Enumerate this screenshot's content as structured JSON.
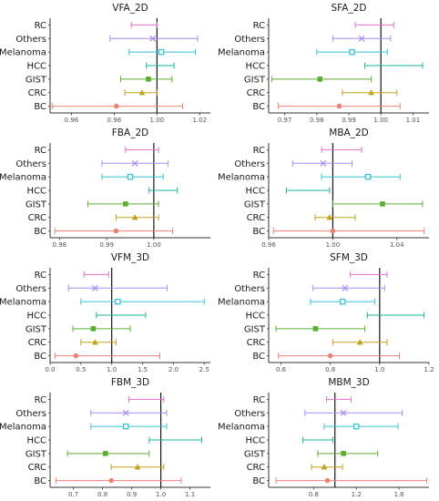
{
  "figure": {
    "categories": [
      "RC",
      "Others",
      "Melanoma",
      "HCC",
      "GIST",
      "CRC",
      "BC"
    ],
    "series_colors": {
      "RC": "#e46fd6",
      "Others": "#a58cf6",
      "Melanoma": "#37c3d8",
      "HCC": "#1bb59a",
      "GIST": "#5cae31",
      "CRC": "#c4a21d",
      "BC": "#ef8378"
    },
    "series_markers": {
      "RC": "none",
      "Others": "x",
      "Melanoma": "square-open",
      "HCC": "none",
      "GIST": "square",
      "CRC": "triangle",
      "BC": "circle"
    }
  },
  "chart_data": [
    {
      "type": "forest",
      "title": "VFA_2D",
      "xlim": [
        0.95,
        1.025
      ],
      "reference_line": 1.0,
      "xticks": [
        0.96,
        0.98,
        1.0,
        1.02
      ],
      "xtick_labels": [
        "0.96",
        "0.98",
        "1.00",
        "1.02"
      ],
      "points": [
        {
          "category": "RC",
          "estimate": null,
          "lower": 0.988,
          "upper": 1.0
        },
        {
          "category": "Others",
          "estimate": 0.998,
          "lower": 0.978,
          "upper": 1.019
        },
        {
          "category": "Melanoma",
          "estimate": 1.002,
          "lower": 0.987,
          "upper": 1.018
        },
        {
          "category": "HCC",
          "estimate": null,
          "lower": 0.995,
          "upper": 1.008
        },
        {
          "category": "GIST",
          "estimate": 0.996,
          "lower": 0.983,
          "upper": 1.007
        },
        {
          "category": "CRC",
          "estimate": 0.993,
          "lower": 0.985,
          "upper": 1.0
        },
        {
          "category": "BC",
          "estimate": 0.981,
          "lower": 0.951,
          "upper": 1.012
        }
      ]
    },
    {
      "type": "forest",
      "title": "SFA_2D",
      "xlim": [
        0.965,
        1.015
      ],
      "reference_line": 1.0,
      "xticks": [
        0.97,
        0.98,
        0.99,
        1.0,
        1.01
      ],
      "xtick_labels": [
        "0.97",
        "0.98",
        "0.99",
        "1.00",
        "1.01"
      ],
      "points": [
        {
          "category": "RC",
          "estimate": null,
          "lower": 0.992,
          "upper": 1.004
        },
        {
          "category": "Others",
          "estimate": 0.994,
          "lower": 0.985,
          "upper": 1.003
        },
        {
          "category": "Melanoma",
          "estimate": 0.991,
          "lower": 0.98,
          "upper": 1.002
        },
        {
          "category": "HCC",
          "estimate": null,
          "lower": 0.995,
          "upper": 1.013
        },
        {
          "category": "GIST",
          "estimate": 0.981,
          "lower": 0.966,
          "upper": 0.997
        },
        {
          "category": "CRC",
          "estimate": 0.997,
          "lower": 0.988,
          "upper": 1.005
        },
        {
          "category": "BC",
          "estimate": 0.987,
          "lower": 0.968,
          "upper": 1.006
        }
      ]
    },
    {
      "type": "forest",
      "title": "FBA_2D",
      "xlim": [
        0.978,
        1.012
      ],
      "reference_line": 1.0,
      "xticks": [
        0.98,
        0.99,
        1.0
      ],
      "xtick_labels": [
        "0.98",
        "0.99",
        "1.00"
      ],
      "points": [
        {
          "category": "RC",
          "estimate": null,
          "lower": 0.994,
          "upper": 1.001
        },
        {
          "category": "Others",
          "estimate": 0.996,
          "lower": 0.989,
          "upper": 1.003
        },
        {
          "category": "Melanoma",
          "estimate": 0.995,
          "lower": 0.989,
          "upper": 1.002
        },
        {
          "category": "HCC",
          "estimate": null,
          "lower": 0.999,
          "upper": 1.005
        },
        {
          "category": "GIST",
          "estimate": 0.994,
          "lower": 0.986,
          "upper": 1.001
        },
        {
          "category": "CRC",
          "estimate": 0.996,
          "lower": 0.992,
          "upper": 1.001
        },
        {
          "category": "BC",
          "estimate": 0.992,
          "lower": 0.979,
          "upper": 1.004
        }
      ]
    },
    {
      "type": "forest",
      "title": "MBA_2D",
      "xlim": [
        0.96,
        1.06
      ],
      "reference_line": 1.0,
      "xticks": [
        0.96,
        1.0,
        1.04
      ],
      "xtick_labels": [
        "0.96",
        "1.00",
        "1.04"
      ],
      "points": [
        {
          "category": "RC",
          "estimate": null,
          "lower": 0.993,
          "upper": 1.018
        },
        {
          "category": "Others",
          "estimate": 0.994,
          "lower": 0.975,
          "upper": 1.012
        },
        {
          "category": "Melanoma",
          "estimate": 1.022,
          "lower": 0.993,
          "upper": 1.042
        },
        {
          "category": "HCC",
          "estimate": null,
          "lower": 0.971,
          "upper": 0.998
        },
        {
          "category": "GIST",
          "estimate": 1.031,
          "lower": 1.0,
          "upper": 1.056
        },
        {
          "category": "CRC",
          "estimate": 0.998,
          "lower": 0.989,
          "upper": 1.014
        },
        {
          "category": "BC",
          "estimate": 1.0,
          "lower": 0.963,
          "upper": 1.057
        }
      ]
    },
    {
      "type": "forest",
      "title": "VFM_3D",
      "xlim": [
        0.0,
        2.6
      ],
      "reference_line": 1.0,
      "xticks": [
        0.0,
        0.5,
        1.0,
        1.5,
        2.0,
        2.5
      ],
      "xtick_labels": [
        "0.0",
        "0.5",
        "1.0",
        "1.5",
        "2.0",
        "2.5"
      ],
      "points": [
        {
          "category": "RC",
          "estimate": null,
          "lower": 0.55,
          "upper": 0.95
        },
        {
          "category": "Others",
          "estimate": 0.73,
          "lower": 0.3,
          "upper": 1.9
        },
        {
          "category": "Melanoma",
          "estimate": 1.1,
          "lower": 0.5,
          "upper": 2.5
        },
        {
          "category": "HCC",
          "estimate": null,
          "lower": 0.75,
          "upper": 1.55
        },
        {
          "category": "GIST",
          "estimate": 0.7,
          "lower": 0.37,
          "upper": 1.3
        },
        {
          "category": "CRC",
          "estimate": 0.73,
          "lower": 0.5,
          "upper": 1.07
        },
        {
          "category": "BC",
          "estimate": 0.42,
          "lower": 0.08,
          "upper": 1.78
        }
      ]
    },
    {
      "type": "forest",
      "title": "SFM_3D",
      "xlim": [
        0.55,
        1.2
      ],
      "reference_line": 1.0,
      "xticks": [
        0.6,
        0.8,
        1.0,
        1.2
      ],
      "xtick_labels": [
        "0.6",
        "0.8",
        "1.0",
        "1.2"
      ],
      "points": [
        {
          "category": "RC",
          "estimate": null,
          "lower": 0.88,
          "upper": 1.03
        },
        {
          "category": "Others",
          "estimate": 0.86,
          "lower": 0.73,
          "upper": 1.02
        },
        {
          "category": "Melanoma",
          "estimate": 0.85,
          "lower": 0.72,
          "upper": 0.98
        },
        {
          "category": "HCC",
          "estimate": null,
          "lower": 0.95,
          "upper": 1.18
        },
        {
          "category": "GIST",
          "estimate": 0.74,
          "lower": 0.58,
          "upper": 0.94
        },
        {
          "category": "CRC",
          "estimate": 0.92,
          "lower": 0.81,
          "upper": 1.03
        },
        {
          "category": "BC",
          "estimate": 0.8,
          "lower": 0.59,
          "upper": 1.08
        }
      ]
    },
    {
      "type": "forest",
      "title": "FBM_3D",
      "xlim": [
        0.62,
        1.17
      ],
      "reference_line": 1.0,
      "xticks": [
        0.7,
        0.8,
        0.9,
        1.0,
        1.1
      ],
      "xtick_labels": [
        "0.7",
        "0.8",
        "0.9",
        "1.0",
        "1.1"
      ],
      "points": [
        {
          "category": "RC",
          "estimate": null,
          "lower": 0.89,
          "upper": 1.01
        },
        {
          "category": "Others",
          "estimate": 0.88,
          "lower": 0.76,
          "upper": 1.02
        },
        {
          "category": "Melanoma",
          "estimate": 0.88,
          "lower": 0.76,
          "upper": 1.02
        },
        {
          "category": "HCC",
          "estimate": null,
          "lower": 0.96,
          "upper": 1.14
        },
        {
          "category": "GIST",
          "estimate": 0.81,
          "lower": 0.68,
          "upper": 0.96
        },
        {
          "category": "CRC",
          "estimate": 0.92,
          "lower": 0.83,
          "upper": 1.01
        },
        {
          "category": "BC",
          "estimate": 0.83,
          "lower": 0.64,
          "upper": 1.07
        }
      ]
    },
    {
      "type": "forest",
      "title": "MBM_3D",
      "xlim": [
        0.38,
        1.88
      ],
      "reference_line": 1.0,
      "xticks": [
        0.8,
        1.2,
        1.6
      ],
      "xtick_labels": [
        "0.8",
        "1.2",
        "1.6"
      ],
      "points": [
        {
          "category": "RC",
          "estimate": null,
          "lower": 0.92,
          "upper": 1.15
        },
        {
          "category": "Others",
          "estimate": 1.08,
          "lower": 0.72,
          "upper": 1.63
        },
        {
          "category": "Melanoma",
          "estimate": 1.2,
          "lower": 0.9,
          "upper": 1.59
        },
        {
          "category": "HCC",
          "estimate": null,
          "lower": 0.7,
          "upper": 0.98
        },
        {
          "category": "GIST",
          "estimate": 1.08,
          "lower": 0.84,
          "upper": 1.4
        },
        {
          "category": "CRC",
          "estimate": 0.9,
          "lower": 0.78,
          "upper": 1.07
        },
        {
          "category": "BC",
          "estimate": 0.93,
          "lower": 0.45,
          "upper": 1.86
        }
      ]
    }
  ]
}
